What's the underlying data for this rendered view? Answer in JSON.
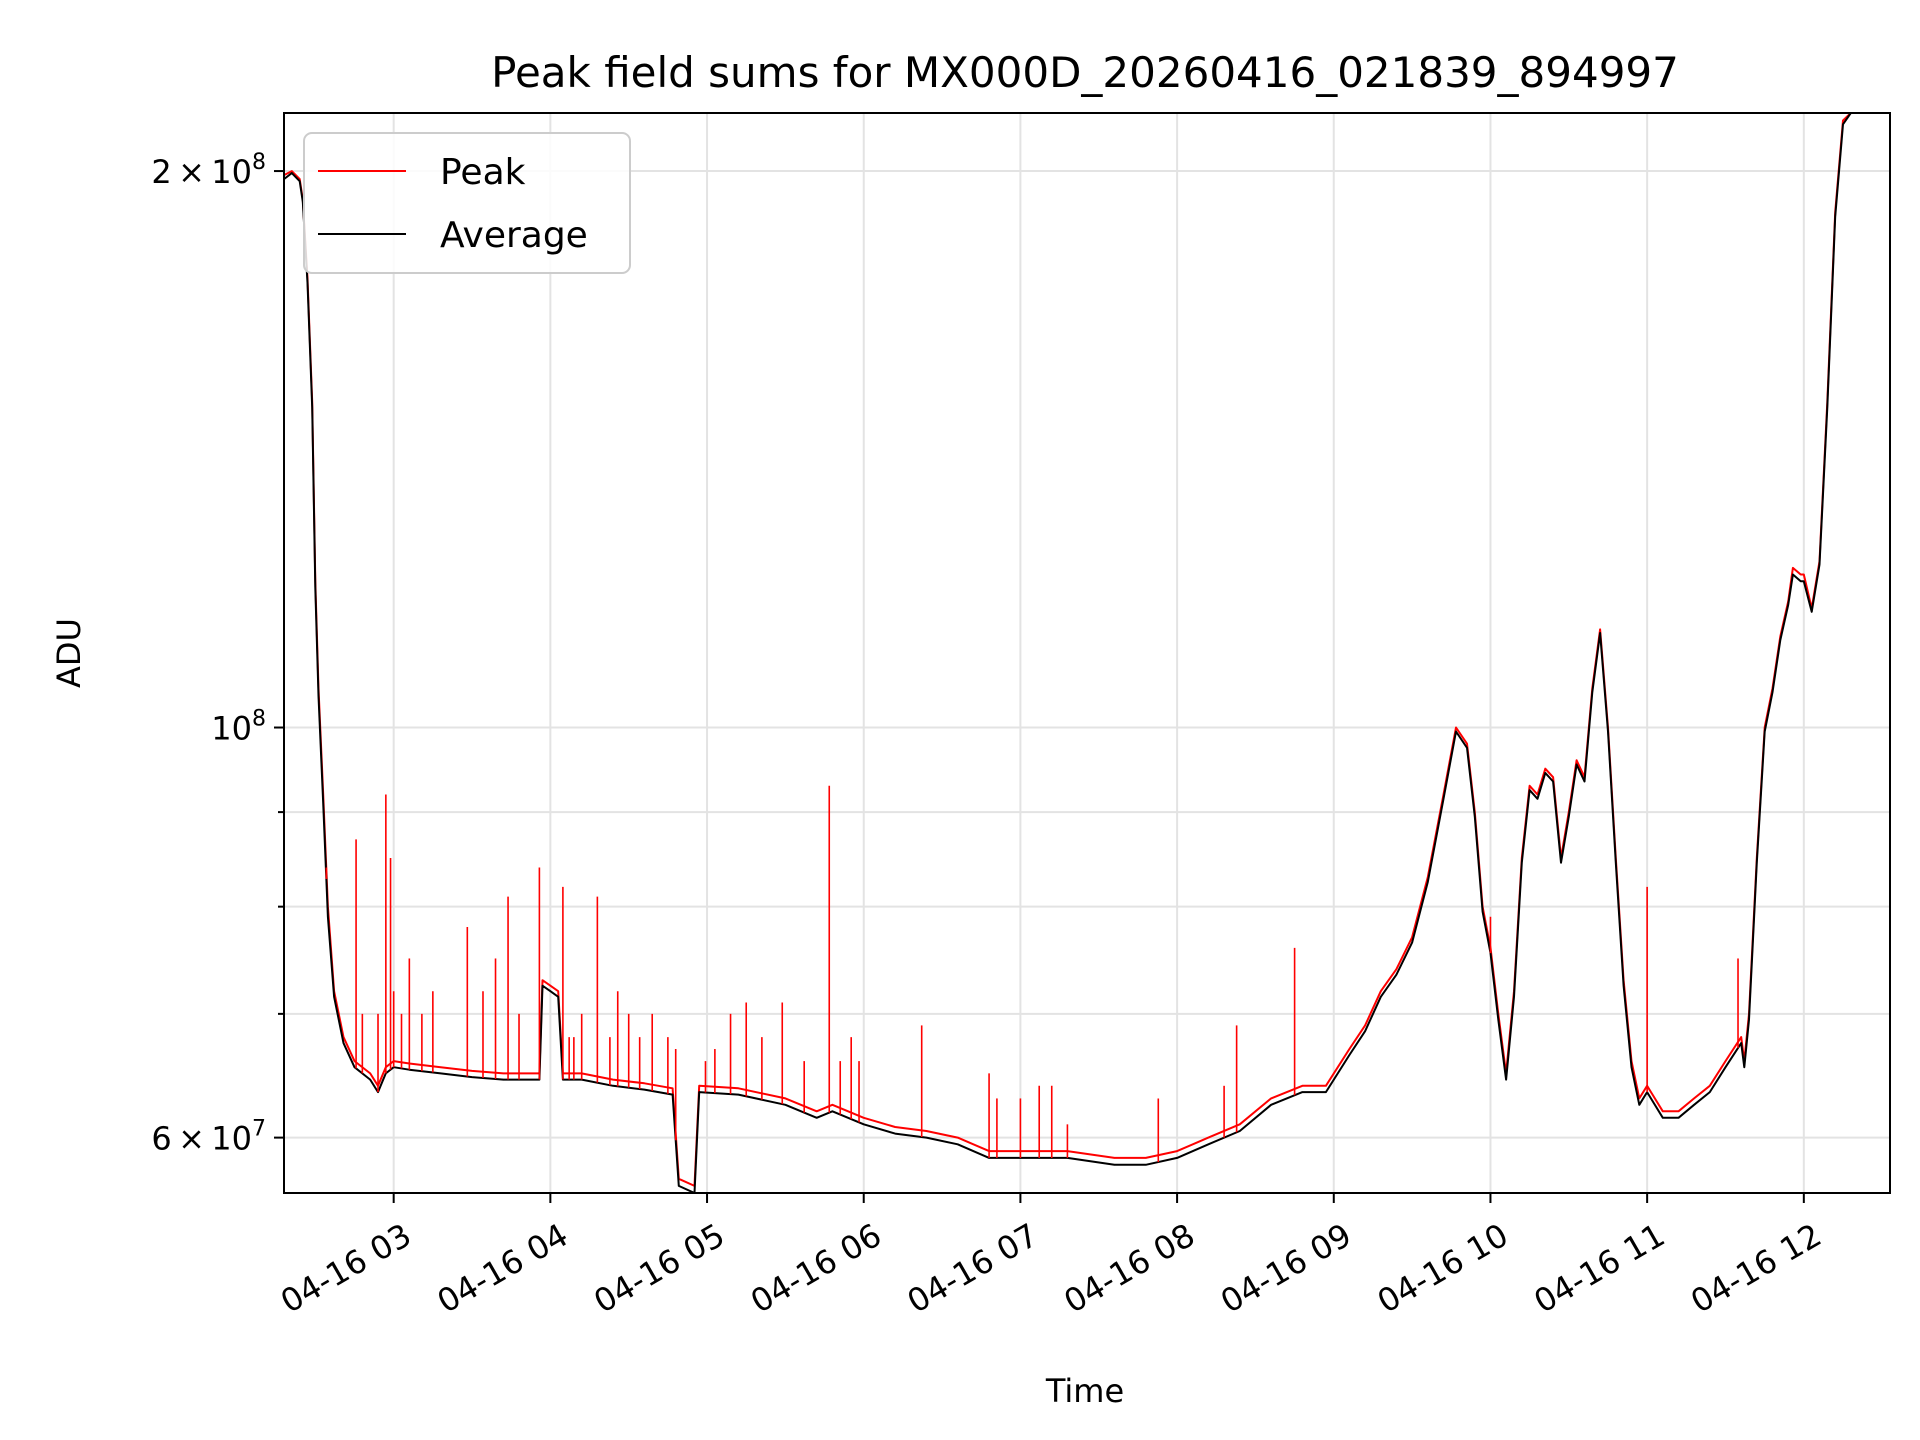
{
  "chart_data": {
    "type": "line",
    "title": "Peak field sums for MX000D_20260416_021839_894997",
    "xlabel": "Time",
    "ylabel": "ADU",
    "yscale": "log",
    "xlim": [
      2.3,
      12.55
    ],
    "ylim": [
      56000000,
      215000000
    ],
    "x_ticks": [
      3,
      4,
      5,
      6,
      7,
      8,
      9,
      10,
      11,
      12
    ],
    "x_tick_labels": [
      "04-16 03",
      "04-16 04",
      "04-16 05",
      "04-16 06",
      "04-16 07",
      "04-16 08",
      "04-16 09",
      "04-16 10",
      "04-16 11",
      "04-16 12"
    ],
    "y_major_ticks": [
      60000000,
      100000000,
      200000000
    ],
    "y_major_labels": [
      {
        "mantissa": "6",
        "times": "×",
        "base": "10",
        "exp": "7"
      },
      {
        "mantissa": "",
        "times": "",
        "base": "10",
        "exp": "8"
      },
      {
        "mantissa": "2",
        "times": "×",
        "base": "10",
        "exp": "8"
      }
    ],
    "y_minor_ticks": [
      70000000,
      80000000,
      90000000
    ],
    "grid": true,
    "legend": {
      "position": "top-left",
      "entries": [
        "Peak",
        "Average"
      ]
    },
    "series": [
      {
        "name": "Peak",
        "color": "#ff0000",
        "points": [
          [
            2.3,
            199000000
          ],
          [
            2.35,
            200000000
          ],
          [
            2.4,
            198000000
          ],
          [
            2.42,
            193000000
          ],
          [
            2.45,
            175000000
          ],
          [
            2.48,
            150000000
          ],
          [
            2.5,
            120000000
          ],
          [
            2.52,
            105000000
          ],
          [
            2.55,
            92000000
          ],
          [
            2.58,
            80000000
          ],
          [
            2.62,
            72000000
          ],
          [
            2.68,
            68000000
          ],
          [
            2.75,
            66000000
          ],
          [
            2.85,
            65000000
          ],
          [
            2.9,
            64000000
          ],
          [
            2.95,
            65500000
          ],
          [
            3.0,
            66000000
          ],
          [
            3.1,
            65800000
          ],
          [
            3.3,
            65500000
          ],
          [
            3.5,
            65200000
          ],
          [
            3.7,
            65000000
          ],
          [
            3.93,
            65000000
          ],
          [
            3.95,
            73000000
          ],
          [
            4.0,
            72500000
          ],
          [
            4.05,
            72000000
          ],
          [
            4.08,
            65000000
          ],
          [
            4.2,
            65000000
          ],
          [
            4.4,
            64500000
          ],
          [
            4.6,
            64200000
          ],
          [
            4.78,
            63800000
          ],
          [
            4.82,
            57000000
          ],
          [
            4.92,
            56500000
          ],
          [
            4.95,
            64000000
          ],
          [
            5.2,
            63800000
          ],
          [
            5.5,
            63000000
          ],
          [
            5.7,
            62000000
          ],
          [
            5.8,
            62500000
          ],
          [
            6.0,
            61500000
          ],
          [
            6.2,
            60800000
          ],
          [
            6.4,
            60500000
          ],
          [
            6.6,
            60000000
          ],
          [
            6.8,
            59000000
          ],
          [
            7.0,
            59000000
          ],
          [
            7.3,
            59000000
          ],
          [
            7.6,
            58500000
          ],
          [
            7.8,
            58500000
          ],
          [
            8.0,
            59000000
          ],
          [
            8.2,
            60000000
          ],
          [
            8.4,
            61000000
          ],
          [
            8.6,
            63000000
          ],
          [
            8.8,
            64000000
          ],
          [
            8.95,
            64000000
          ],
          [
            9.1,
            67000000
          ],
          [
            9.2,
            69000000
          ],
          [
            9.3,
            72000000
          ],
          [
            9.4,
            74000000
          ],
          [
            9.5,
            77000000
          ],
          [
            9.6,
            83000000
          ],
          [
            9.7,
            92000000
          ],
          [
            9.78,
            100000000
          ],
          [
            9.85,
            98000000
          ],
          [
            9.9,
            90000000
          ],
          [
            9.95,
            80000000
          ],
          [
            10.0,
            76000000
          ],
          [
            10.05,
            70000000
          ],
          [
            10.1,
            65000000
          ],
          [
            10.15,
            72000000
          ],
          [
            10.2,
            85000000
          ],
          [
            10.25,
            93000000
          ],
          [
            10.3,
            92000000
          ],
          [
            10.35,
            95000000
          ],
          [
            10.4,
            94000000
          ],
          [
            10.45,
            85000000
          ],
          [
            10.5,
            90000000
          ],
          [
            10.55,
            96000000
          ],
          [
            10.6,
            94000000
          ],
          [
            10.65,
            105000000
          ],
          [
            10.7,
            113000000
          ],
          [
            10.75,
            100000000
          ],
          [
            10.8,
            85000000
          ],
          [
            10.85,
            73000000
          ],
          [
            10.9,
            66000000
          ],
          [
            10.95,
            63000000
          ],
          [
            11.0,
            64000000
          ],
          [
            11.1,
            62000000
          ],
          [
            11.2,
            62000000
          ],
          [
            11.3,
            63000000
          ],
          [
            11.4,
            64000000
          ],
          [
            11.5,
            66000000
          ],
          [
            11.6,
            68000000
          ],
          [
            11.62,
            66000000
          ],
          [
            11.65,
            70000000
          ],
          [
            11.7,
            85000000
          ],
          [
            11.75,
            100000000
          ],
          [
            11.8,
            105000000
          ],
          [
            11.85,
            112000000
          ],
          [
            11.9,
            117000000
          ],
          [
            11.93,
            122000000
          ],
          [
            11.98,
            121000000
          ],
          [
            12.0,
            121000000
          ],
          [
            12.05,
            116000000
          ],
          [
            12.1,
            123000000
          ],
          [
            12.15,
            150000000
          ],
          [
            12.2,
            190000000
          ],
          [
            12.25,
            213000000
          ],
          [
            12.3,
            215000000
          ]
        ]
      },
      {
        "name": "Average",
        "color": "#000000",
        "points": [
          [
            2.3,
            198000000
          ],
          [
            2.35,
            199500000
          ],
          [
            2.4,
            197500000
          ],
          [
            2.42,
            192500000
          ],
          [
            2.45,
            174000000
          ],
          [
            2.48,
            149000000
          ],
          [
            2.5,
            119000000
          ],
          [
            2.52,
            104000000
          ],
          [
            2.55,
            91000000
          ],
          [
            2.58,
            79000000
          ],
          [
            2.62,
            71500000
          ],
          [
            2.68,
            67500000
          ],
          [
            2.75,
            65500000
          ],
          [
            2.85,
            64500000
          ],
          [
            2.9,
            63500000
          ],
          [
            2.95,
            65000000
          ],
          [
            3.0,
            65500000
          ],
          [
            3.1,
            65300000
          ],
          [
            3.3,
            65000000
          ],
          [
            3.5,
            64700000
          ],
          [
            3.7,
            64500000
          ],
          [
            3.93,
            64500000
          ],
          [
            3.95,
            72500000
          ],
          [
            4.0,
            72000000
          ],
          [
            4.05,
            71500000
          ],
          [
            4.08,
            64500000
          ],
          [
            4.2,
            64500000
          ],
          [
            4.4,
            64000000
          ],
          [
            4.6,
            63700000
          ],
          [
            4.78,
            63300000
          ],
          [
            4.82,
            56500000
          ],
          [
            4.92,
            56000000
          ],
          [
            4.95,
            63500000
          ],
          [
            5.2,
            63300000
          ],
          [
            5.5,
            62500000
          ],
          [
            5.7,
            61500000
          ],
          [
            5.8,
            62000000
          ],
          [
            6.0,
            61000000
          ],
          [
            6.2,
            60300000
          ],
          [
            6.4,
            60000000
          ],
          [
            6.6,
            59500000
          ],
          [
            6.8,
            58500000
          ],
          [
            7.0,
            58500000
          ],
          [
            7.3,
            58500000
          ],
          [
            7.6,
            58000000
          ],
          [
            7.8,
            58000000
          ],
          [
            8.0,
            58500000
          ],
          [
            8.2,
            59500000
          ],
          [
            8.4,
            60500000
          ],
          [
            8.6,
            62500000
          ],
          [
            8.8,
            63500000
          ],
          [
            8.95,
            63500000
          ],
          [
            9.1,
            66500000
          ],
          [
            9.2,
            68500000
          ],
          [
            9.3,
            71500000
          ],
          [
            9.4,
            73500000
          ],
          [
            9.5,
            76500000
          ],
          [
            9.6,
            82500000
          ],
          [
            9.7,
            91500000
          ],
          [
            9.78,
            99500000
          ],
          [
            9.85,
            97500000
          ],
          [
            9.9,
            89500000
          ],
          [
            9.95,
            79500000
          ],
          [
            10.0,
            75500000
          ],
          [
            10.05,
            69500000
          ],
          [
            10.1,
            64500000
          ],
          [
            10.15,
            71500000
          ],
          [
            10.2,
            84500000
          ],
          [
            10.25,
            92500000
          ],
          [
            10.3,
            91500000
          ],
          [
            10.35,
            94500000
          ],
          [
            10.4,
            93500000
          ],
          [
            10.45,
            84500000
          ],
          [
            10.5,
            89500000
          ],
          [
            10.55,
            95500000
          ],
          [
            10.6,
            93500000
          ],
          [
            10.65,
            104500000
          ],
          [
            10.7,
            112500000
          ],
          [
            10.75,
            99500000
          ],
          [
            10.8,
            84500000
          ],
          [
            10.85,
            72500000
          ],
          [
            10.9,
            65500000
          ],
          [
            10.95,
            62500000
          ],
          [
            11.0,
            63500000
          ],
          [
            11.1,
            61500000
          ],
          [
            11.2,
            61500000
          ],
          [
            11.3,
            62500000
          ],
          [
            11.4,
            63500000
          ],
          [
            11.5,
            65500000
          ],
          [
            11.6,
            67500000
          ],
          [
            11.62,
            65500000
          ],
          [
            11.65,
            69500000
          ],
          [
            11.7,
            84500000
          ],
          [
            11.75,
            99500000
          ],
          [
            11.8,
            104500000
          ],
          [
            11.85,
            111500000
          ],
          [
            11.9,
            116500000
          ],
          [
            11.93,
            121000000
          ],
          [
            11.98,
            120000000
          ],
          [
            12.0,
            120000000
          ],
          [
            12.05,
            115500000
          ],
          [
            12.1,
            122500000
          ],
          [
            12.15,
            149000000
          ],
          [
            12.2,
            189000000
          ],
          [
            12.25,
            212000000
          ],
          [
            12.3,
            215000000
          ]
        ]
      }
    ],
    "peak_spikes": [
      [
        2.57,
        84000000
      ],
      [
        2.76,
        87000000
      ],
      [
        2.8,
        70000000
      ],
      [
        2.9,
        70000000
      ],
      [
        2.95,
        92000000
      ],
      [
        2.98,
        85000000
      ],
      [
        3.0,
        72000000
      ],
      [
        3.05,
        70000000
      ],
      [
        3.1,
        75000000
      ],
      [
        3.18,
        70000000
      ],
      [
        3.25,
        72000000
      ],
      [
        3.47,
        78000000
      ],
      [
        3.57,
        72000000
      ],
      [
        3.65,
        75000000
      ],
      [
        3.73,
        81000000
      ],
      [
        3.8,
        70000000
      ],
      [
        3.93,
        84000000
      ],
      [
        4.08,
        82000000
      ],
      [
        4.12,
        68000000
      ],
      [
        4.15,
        68000000
      ],
      [
        4.2,
        70000000
      ],
      [
        4.3,
        81000000
      ],
      [
        4.38,
        68000000
      ],
      [
        4.43,
        72000000
      ],
      [
        4.5,
        70000000
      ],
      [
        4.57,
        68000000
      ],
      [
        4.65,
        70000000
      ],
      [
        4.75,
        68000000
      ],
      [
        4.8,
        67000000
      ],
      [
        4.99,
        66000000
      ],
      [
        5.05,
        67000000
      ],
      [
        5.15,
        70000000
      ],
      [
        5.25,
        71000000
      ],
      [
        5.35,
        68000000
      ],
      [
        5.48,
        71000000
      ],
      [
        5.62,
        66000000
      ],
      [
        5.78,
        93000000
      ],
      [
        5.85,
        66000000
      ],
      [
        5.92,
        68000000
      ],
      [
        5.97,
        66000000
      ],
      [
        6.37,
        69000000
      ],
      [
        6.8,
        65000000
      ],
      [
        6.85,
        63000000
      ],
      [
        7.0,
        63000000
      ],
      [
        7.12,
        64000000
      ],
      [
        7.2,
        64000000
      ],
      [
        7.3,
        61000000
      ],
      [
        7.88,
        63000000
      ],
      [
        8.3,
        64000000
      ],
      [
        8.38,
        69000000
      ],
      [
        8.75,
        76000000
      ],
      [
        10.0,
        79000000
      ],
      [
        11.0,
        82000000
      ],
      [
        11.58,
        75000000
      ]
    ]
  }
}
